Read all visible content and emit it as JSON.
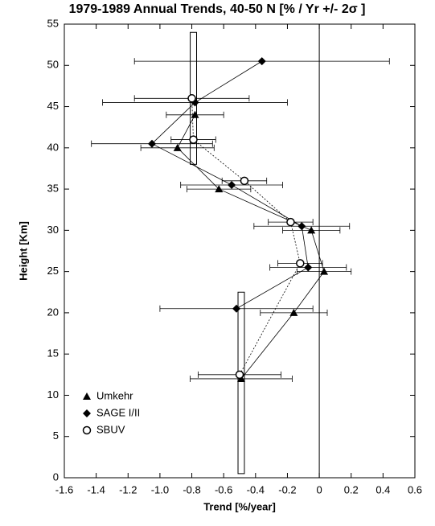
{
  "chart_data": {
    "type": "scatter",
    "title": "1979-1989 Annual Trends, 40-50 N [% / Yr +/- 2σ ]",
    "x_label": "Trend [%/year]",
    "y_label": "Height [Km]",
    "xlim": [
      -1.6,
      0.6
    ],
    "xticks": [
      {
        "value": -1.6,
        "label": "-1.6"
      },
      {
        "value": -1.4,
        "label": "-1.4"
      },
      {
        "value": -1.2,
        "label": "-1.2"
      },
      {
        "value": -1,
        "label": "-1.0"
      },
      {
        "value": -0.8,
        "label": "-0.8"
      },
      {
        "value": -0.6,
        "label": "-0.6"
      },
      {
        "value": -0.4,
        "label": "-0.4"
      },
      {
        "value": -0.2,
        "label": "-0.2"
      },
      0,
      0.2,
      0.4,
      0.6
    ],
    "ylim": [
      0,
      55
    ],
    "yticks": [
      0,
      5,
      10,
      15,
      20,
      25,
      30,
      35,
      40,
      45,
      50,
      55
    ],
    "zero_line": true,
    "legend": "lower left",
    "color": "#000000",
    "bands": [
      {
        "x": [
          -0.81,
          -0.77
        ],
        "y": [
          38,
          54
        ]
      },
      {
        "x": [
          -0.51,
          -0.47
        ],
        "y": [
          0.5,
          22.5
        ]
      }
    ],
    "series": [
      {
        "name": "Umkehr",
        "marker": "triangle",
        "line_style": "solid",
        "x": [
          -0.49,
          -0.16,
          0.03,
          -0.05,
          -0.63,
          -0.89,
          -0.78
        ],
        "y": [
          12,
          20,
          25,
          30,
          35,
          40,
          44
        ],
        "xerr": [
          0.32,
          0.21,
          0.17,
          0.18,
          0.2,
          0.23,
          0.18
        ]
      },
      {
        "name": "SAGE I/II",
        "marker": "diamond",
        "line_style": "solid",
        "x": [
          -0.52,
          -0.07,
          -0.11,
          -0.55,
          -1.05,
          -0.78,
          -0.36
        ],
        "y": [
          20.5,
          25.5,
          30.5,
          35.5,
          40.5,
          45.5,
          50.5
        ],
        "xerr": [
          0.48,
          0.24,
          0.3,
          0.32,
          0.38,
          0.58,
          0.8
        ]
      },
      {
        "name": "SBUV",
        "marker": "circle",
        "line_style": "dotted",
        "x": [
          -0.5,
          -0.12,
          -0.18,
          -0.47,
          -0.79,
          -0.8
        ],
        "y": [
          12.5,
          26,
          31,
          36,
          41,
          46
        ],
        "xerr": [
          0.26,
          0.14,
          0.14,
          0.14,
          0.14,
          0.36
        ]
      }
    ]
  }
}
